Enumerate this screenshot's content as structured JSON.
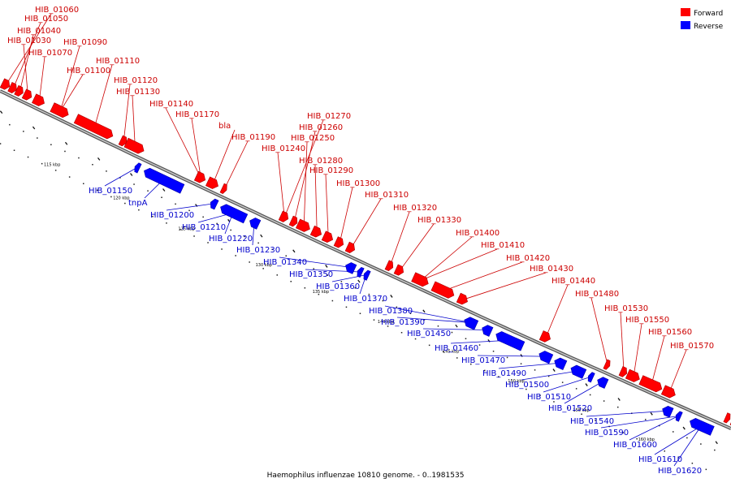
{
  "caption": "Haemophilus influenzae 10810 genome. - 0..1981535",
  "legend": [
    {
      "label": "Forward",
      "color": "#ff0000"
    },
    {
      "label": "Reverse",
      "color": "#0000ff"
    }
  ],
  "colors": {
    "forward": "#ff0000",
    "reverse": "#0000ff",
    "backbone": "#888888"
  },
  "scale_ticks": [
    "115 kbp",
    "120 kbp",
    "125 kbp",
    "130 kbp",
    "135 kbp",
    "140 kbp",
    "145 kbp",
    "150 kbp",
    "155 kbp",
    "160 kbp"
  ],
  "forward_genes": [
    "HIB_01060",
    "HIB_01050",
    "HIB_01040",
    "HIB_01030",
    "HIB_01070",
    "HIB_01090",
    "HIB_01110",
    "HIB_01100",
    "HIB_01120",
    "HIB_01130",
    "HIB_01140",
    "HIB_01170",
    "bla",
    "HIB_01190",
    "HIB_01270",
    "HIB_01260",
    "HIB_01250",
    "HIB_01240",
    "HIB_01280",
    "HIB_01290",
    "HIB_01300",
    "HIB_01310",
    "HIB_01320",
    "HIB_01330",
    "HIB_01400",
    "HIB_01410",
    "HIB_01420",
    "HIB_01430",
    "HIB_01440",
    "HIB_01480",
    "HIB_01530",
    "HIB_01550",
    "HIB_01560",
    "HIB_01570"
  ],
  "reverse_genes": [
    "HIB_01150",
    "tnpA",
    "HIB_01200",
    "HIB_01210",
    "HIB_01220",
    "HIB_01230",
    "HIB_01340",
    "HIB_01350",
    "HIB_01360",
    "HIB_01370",
    "HIB_01380",
    "HIB_01390",
    "HIB_01450",
    "HIB_01460",
    "HIB_01470",
    "HIB_01490",
    "HIB_01500",
    "HIB_01510",
    "HIB_01520",
    "HIB_01540",
    "HIB_01590",
    "HIB_01600",
    "HIB_01610",
    "HIB_01620"
  ]
}
